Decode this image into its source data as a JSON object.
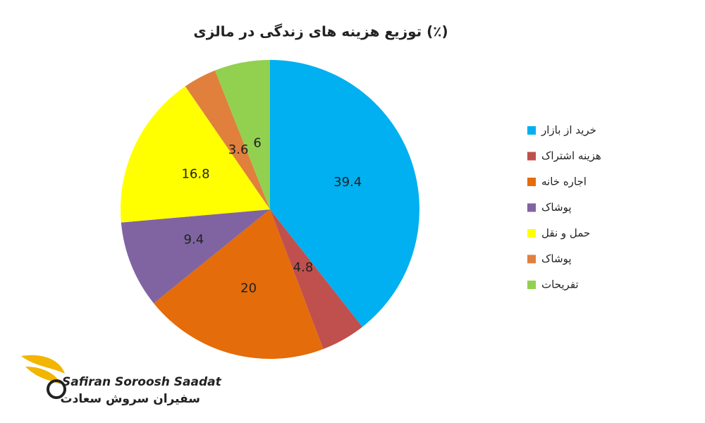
{
  "chart_data": {
    "type": "pie",
    "title": "توزیع هزینه های زندگی در مالزی (٪)",
    "categories": [
      "خرید از بازار",
      "هزینه اشتراک",
      "اجاره خانه",
      "پوشاک",
      "حمل و نقل",
      "پوشاک",
      "تفریحات"
    ],
    "values": [
      39.4,
      4.8,
      20,
      9.4,
      16.8,
      3.6,
      6
    ],
    "colors": [
      "#00b0f0",
      "#c0504d",
      "#e46c0a",
      "#8064a2",
      "#ffff00",
      "#e0803c",
      "#92d050"
    ],
    "legend": "right"
  },
  "logo": {
    "name_en": "Safiran Soroosh Saadat",
    "name_fa": "سفیران سروش سعادت"
  }
}
